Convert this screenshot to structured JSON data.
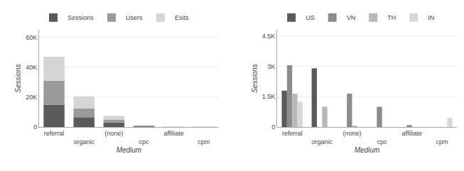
{
  "chart_data": [
    {
      "type": "bar",
      "stacked": true,
      "xlabel": "Medium",
      "ylabel": "Sessions",
      "categories": [
        "referral",
        "organic",
        "(none)",
        "cpc",
        "affiliate",
        "cpm"
      ],
      "series": [
        {
          "name": "Sessions",
          "color": "#5a5a5a",
          "values": [
            15000,
            6500,
            3000,
            500,
            200,
            50
          ]
        },
        {
          "name": "Users",
          "color": "#9a9a9a",
          "values": [
            16000,
            6000,
            2000,
            400,
            150,
            40
          ]
        },
        {
          "name": "Exits",
          "color": "#d5d5d5",
          "values": [
            16000,
            8000,
            2500,
            300,
            100,
            30
          ]
        }
      ],
      "ylim": [
        0,
        65000
      ],
      "yticks": [
        0,
        {
          "value": 20000,
          "label": "20K"
        },
        {
          "value": 40000,
          "label": "40K"
        },
        {
          "value": 60000,
          "label": "60K"
        }
      ],
      "grid": true,
      "legend": "upper left"
    },
    {
      "type": "bar",
      "stacked": false,
      "xlabel": "Medium",
      "ylabel": "Sessions",
      "categories": [
        "referral",
        "organic",
        "(none)",
        "cpc",
        "affiliate",
        "cpm"
      ],
      "series": [
        {
          "name": "US",
          "color": "#5a5a5a",
          "values": [
            1800,
            2900,
            0,
            0,
            0,
            0
          ]
        },
        {
          "name": "VN",
          "color": "#8c8c8c",
          "values": [
            3050,
            0,
            1650,
            1000,
            100,
            0
          ]
        },
        {
          "name": "TH",
          "color": "#b8b8b8",
          "values": [
            1650,
            1000,
            50,
            0,
            0,
            0
          ]
        },
        {
          "name": "IN",
          "color": "#d8d8d8",
          "values": [
            1250,
            0,
            0,
            0,
            0,
            450
          ]
        }
      ],
      "ylim": [
        0,
        4800
      ],
      "yticks": [
        0,
        {
          "value": 1500,
          "label": "1.5K"
        },
        {
          "value": 3000,
          "label": "3K"
        },
        {
          "value": 4500,
          "label": "4.5K"
        }
      ],
      "grid": true,
      "legend": "upper left"
    }
  ]
}
